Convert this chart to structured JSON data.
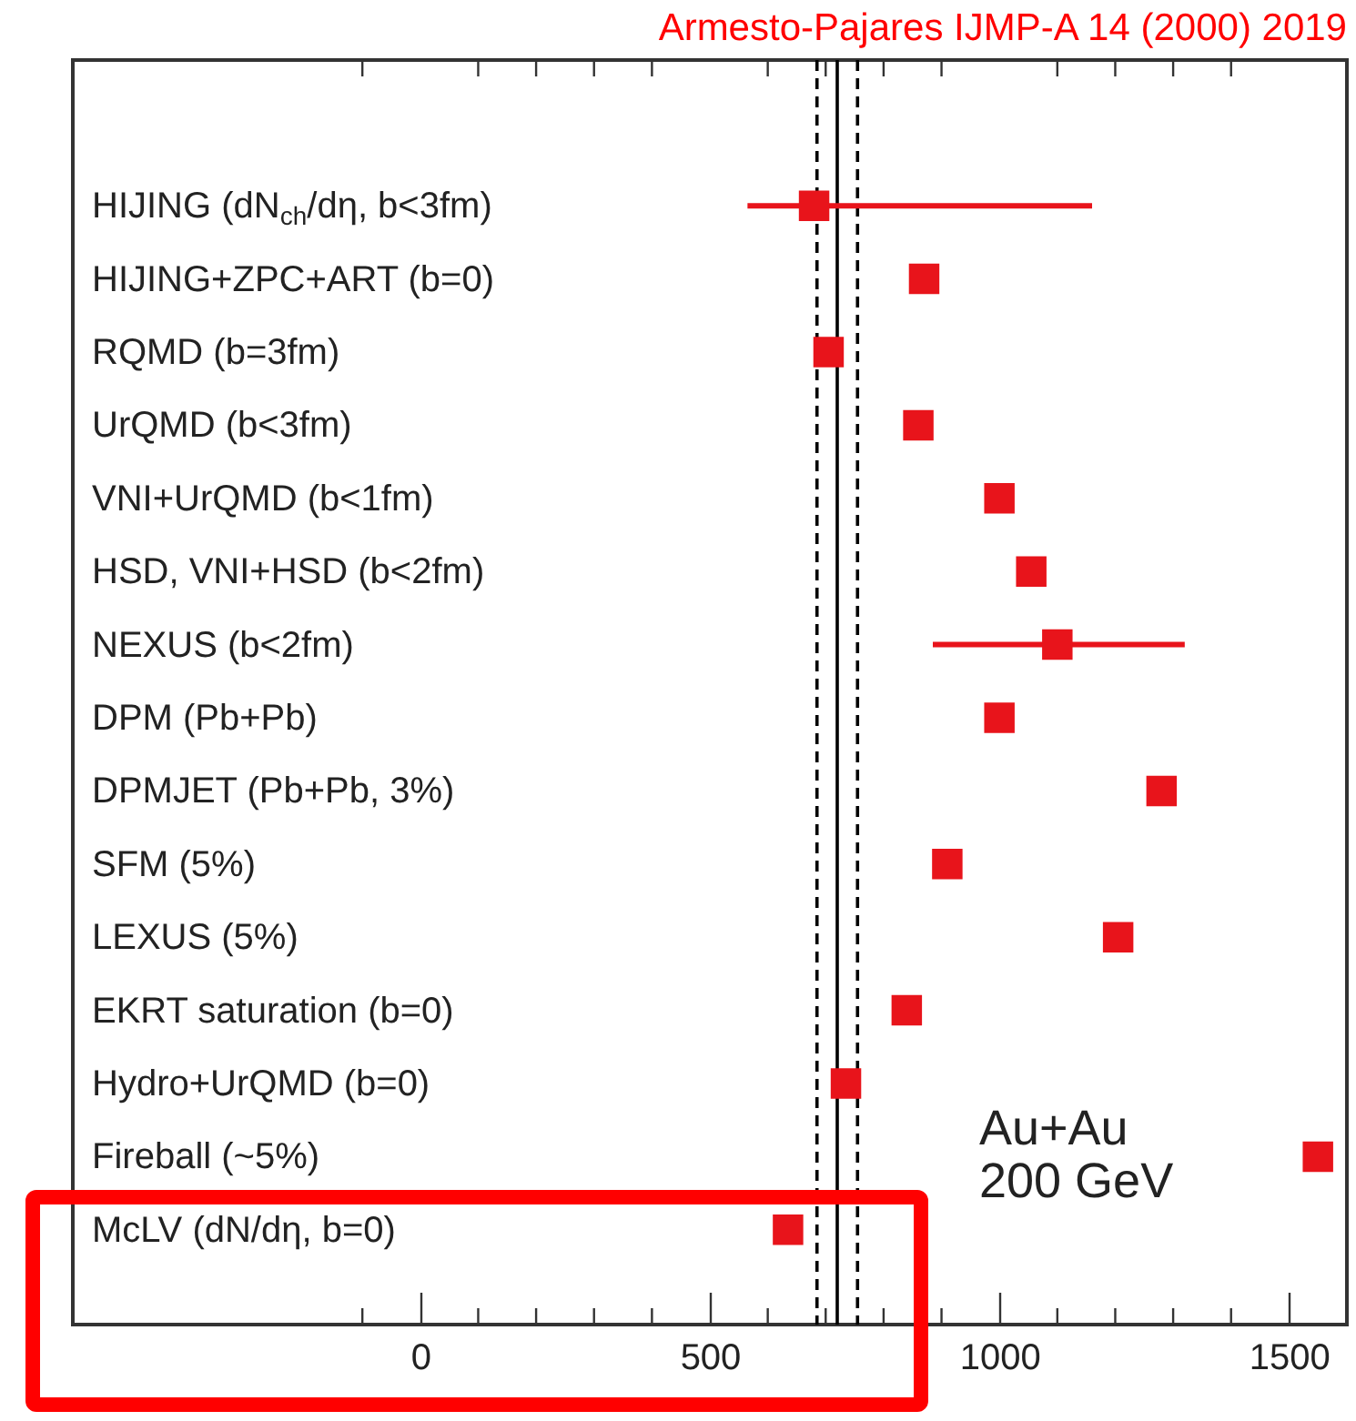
{
  "chart_data": {
    "type": "scatter",
    "orientation": "horizontal",
    "categories": [
      "HIJING (dN$_{ch}$/dη, b<3fm)",
      "HIJING+ZPC+ART (b=0)",
      "RQMD (b=3fm)",
      "UrQMD (b<3fm)",
      "VNI+UrQMD (b<1fm)",
      "HSD, VNI+HSD (b<2fm)",
      "NEXUS (b<2fm)",
      "DPM (Pb+Pb)",
      "DPMJET (Pb+Pb, 3%)",
      "SFM (5%)",
      "LEXUS (5%)",
      "EKRT saturation (b=0)",
      "Hydro+UrQMD (b=0)",
      "Fireball (~5%)",
      "McLV (dN/dη, b=0)"
    ],
    "series": [
      {
        "color": "#e8141b",
        "values": [
          680,
          870,
          705,
          860,
          1000,
          1055,
          1100,
          1000,
          1280,
          910,
          1205,
          840,
          735,
          1550,
          635
        ],
        "errors": [
          [
            565,
            1160
          ],
          null,
          null,
          null,
          null,
          null,
          [
            885,
            1320
          ],
          null,
          null,
          null,
          null,
          null,
          null,
          null,
          null
        ]
      }
    ],
    "xlim": [
      -600,
      1600
    ],
    "xticks": [
      {
        "value": -100,
        "label": null
      },
      0,
      {
        "value": 100,
        "label": null
      },
      {
        "value": 200,
        "label": null
      },
      {
        "value": 300,
        "label": null
      },
      {
        "value": 400,
        "label": null
      },
      500,
      {
        "value": 600,
        "label": null
      },
      {
        "value": 700,
        "label": null
      },
      {
        "value": 800,
        "label": null
      },
      {
        "value": 900,
        "label": null
      },
      1000,
      {
        "value": 1100,
        "label": null
      },
      {
        "value": 1200,
        "label": null
      },
      {
        "value": 1300,
        "label": null
      },
      {
        "value": 1400,
        "label": null
      },
      1500
    ],
    "ref_lines": [
      {
        "axis": "x",
        "value": 685,
        "color": "#000000",
        "line_style": "dashed"
      },
      {
        "axis": "x",
        "value": 720,
        "color": "#000000",
        "line_style": "solid"
      },
      {
        "axis": "x",
        "value": 755,
        "color": "#000000",
        "line_style": "dashed"
      }
    ],
    "annotations": [
      "Armesto-Pajares  IJMP-A 14 (2000) 2019",
      "Au+Au\n200 GeV"
    ],
    "marker": "square",
    "grid": false
  }
}
